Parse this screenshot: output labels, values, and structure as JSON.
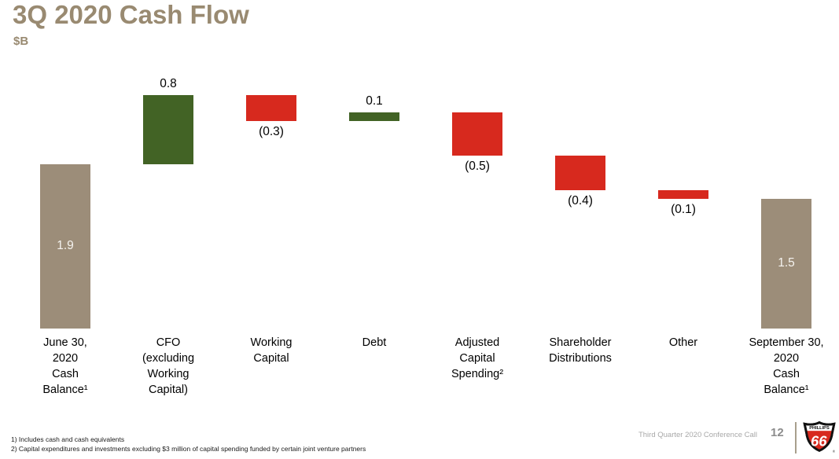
{
  "header": {
    "title": "3Q 2020 Cash Flow",
    "units": "$B"
  },
  "colors": {
    "title": "#998a71",
    "bar_total": "#9c8d79",
    "bar_increase": "#426325",
    "bar_decrease": "#d7291e",
    "value_inside": "#f5f3ef",
    "value_outside": "#000000",
    "footer_text": "#a8a8a8",
    "page_number": "#8c8c8c",
    "divider": "#a89f8d",
    "logo_red": "#d7291e",
    "logo_black": "#111111"
  },
  "chart_data": {
    "type": "bar",
    "subtype": "waterfall",
    "title": "3Q 2020 Cash Flow",
    "ylabel": "$B",
    "ylim": [
      0,
      3.0
    ],
    "grid": false,
    "axes_visible": false,
    "legend": "none",
    "categories": [
      "June 30,\n2020\nCash\nBalance¹",
      "CFO\n(excluding\nWorking\nCapital)",
      "Working\nCapital",
      "Debt",
      "Adjusted\nCapital\nSpending²",
      "Shareholder\nDistributions",
      "Other",
      "September 30,\n2020\nCash\nBalance¹"
    ],
    "keys": [
      "june-30-2020-cash-balance",
      "cfo-excluding-working-capital",
      "working-capital",
      "debt",
      "adjusted-capital-spending",
      "shareholder-distributions",
      "other",
      "september-30-2020-cash-balance"
    ],
    "values": [
      1.9,
      0.8,
      -0.3,
      0.1,
      -0.5,
      -0.4,
      -0.1,
      1.5
    ],
    "value_labels": [
      "1.9",
      "0.8",
      "(0.3)",
      "0.1",
      "(0.5)",
      "(0.4)",
      "(0.1)",
      "1.5"
    ],
    "bar_types": [
      "total",
      "increase",
      "decrease",
      "increase",
      "decrease",
      "decrease",
      "decrease",
      "total"
    ],
    "running_totals": [
      1.9,
      2.7,
      2.4,
      2.5,
      2.0,
      1.6,
      1.5,
      1.5
    ]
  },
  "footer": {
    "footnotes": [
      "1) Includes cash and cash equivalents",
      "2) Capital expenditures and investments excluding $3 million of capital spending funded by certain joint venture partners"
    ],
    "conference": "Third Quarter 2020 Conference Call",
    "page_number": "12",
    "logo": {
      "brand": "PHILLIPS",
      "number": "66",
      "registered": "®"
    }
  }
}
